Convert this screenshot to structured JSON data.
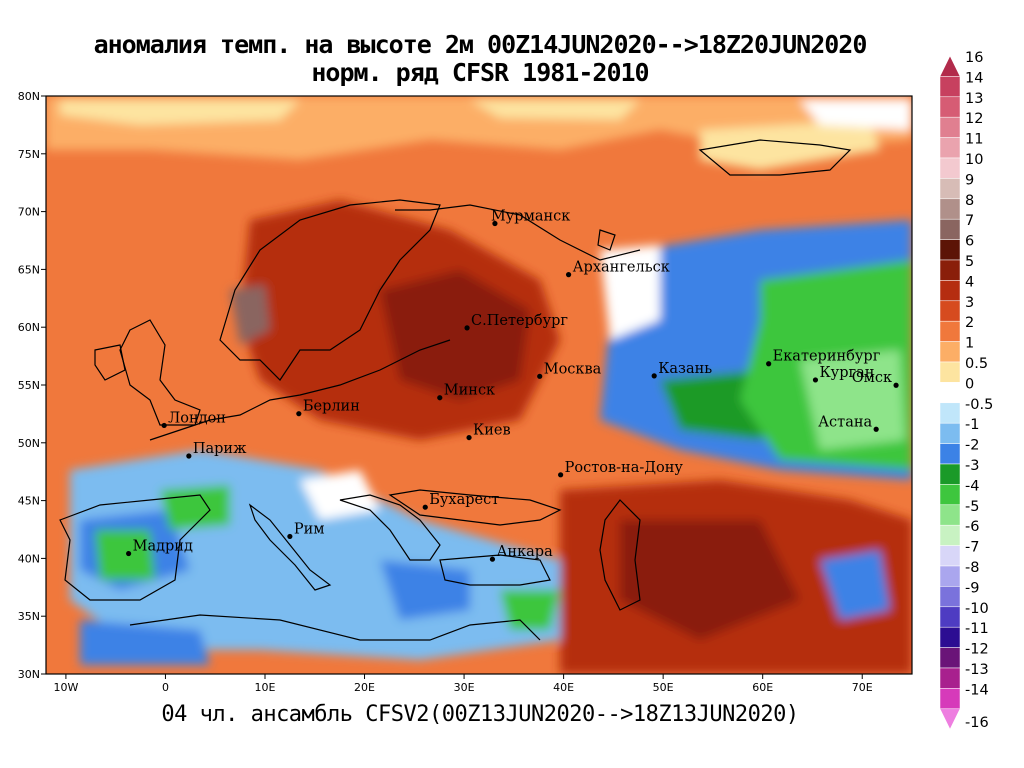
{
  "title_line1": "аномалия темп. на высоте 2м 00Z14JUN2020-->18Z20JUN2020",
  "title_line2": "норм. ряд CFSR 1981-2010",
  "footer": "04 чл. ансамбль CFSV2(00Z13JUN2020-->18Z13JUN2020)",
  "map": {
    "lon_range": [
      -12,
      75
    ],
    "lat_range": [
      30,
      80
    ],
    "lon_ticks": [
      {
        "v": -10,
        "label": "10W"
      },
      {
        "v": 0,
        "label": "0"
      },
      {
        "v": 10,
        "label": "10E"
      },
      {
        "v": 20,
        "label": "20E"
      },
      {
        "v": 30,
        "label": "30E"
      },
      {
        "v": 40,
        "label": "40E"
      },
      {
        "v": 50,
        "label": "50E"
      },
      {
        "v": 60,
        "label": "60E"
      },
      {
        "v": 70,
        "label": "70E"
      }
    ],
    "lat_ticks": [
      {
        "v": 30,
        "label": "30N"
      },
      {
        "v": 35,
        "label": "35N"
      },
      {
        "v": 40,
        "label": "40N"
      },
      {
        "v": 45,
        "label": "45N"
      },
      {
        "v": 50,
        "label": "50N"
      },
      {
        "v": 55,
        "label": "55N"
      },
      {
        "v": 60,
        "label": "60N"
      },
      {
        "v": 65,
        "label": "65N"
      },
      {
        "v": 70,
        "label": "70N"
      },
      {
        "v": 75,
        "label": "75N"
      },
      {
        "v": 80,
        "label": "80N"
      }
    ],
    "cities": [
      {
        "name": "Мурманск",
        "lon": 33.1,
        "lat": 68.97
      },
      {
        "name": "Архангельск",
        "lon": 40.5,
        "lat": 64.55
      },
      {
        "name": "С.Петербург",
        "lon": 30.3,
        "lat": 59.94
      },
      {
        "name": "Москва",
        "lon": 37.6,
        "lat": 55.75
      },
      {
        "name": "Казань",
        "lon": 49.1,
        "lat": 55.79
      },
      {
        "name": "Екатеринбург",
        "lon": 60.6,
        "lat": 56.84
      },
      {
        "name": "Курган",
        "lon": 65.3,
        "lat": 55.44
      },
      {
        "name": "Омск",
        "lon": 73.4,
        "lat": 54.98
      },
      {
        "name": "Астана",
        "lon": 71.4,
        "lat": 51.17
      },
      {
        "name": "Минск",
        "lon": 27.56,
        "lat": 53.9
      },
      {
        "name": "Киев",
        "lon": 30.5,
        "lat": 50.45
      },
      {
        "name": "Берлин",
        "lon": 13.4,
        "lat": 52.52
      },
      {
        "name": "Лондон",
        "lon": -0.13,
        "lat": 51.5
      },
      {
        "name": "Париж",
        "lon": 2.35,
        "lat": 48.86
      },
      {
        "name": "Ростов-на-Дону",
        "lon": 39.7,
        "lat": 47.23
      },
      {
        "name": "Бухарест",
        "lon": 26.1,
        "lat": 44.43
      },
      {
        "name": "Мадрид",
        "lon": -3.7,
        "lat": 40.42
      },
      {
        "name": "Рим",
        "lon": 12.5,
        "lat": 41.9
      },
      {
        "name": "Анкара",
        "lon": 32.85,
        "lat": 39.93
      }
    ]
  },
  "colorbar": {
    "levels": [
      {
        "label": "16",
        "color": "#b22b4b"
      },
      {
        "label": "14",
        "color": "#c7405f"
      },
      {
        "label": "13",
        "color": "#d65c74"
      },
      {
        "label": "12",
        "color": "#e07f90"
      },
      {
        "label": "11",
        "color": "#eaa3ae"
      },
      {
        "label": "10",
        "color": "#f3c9cf"
      },
      {
        "label": "9",
        "color": "#d7bcb6"
      },
      {
        "label": "8",
        "color": "#b0908a"
      },
      {
        "label": "7",
        "color": "#8a6560"
      },
      {
        "label": "6",
        "color": "#5c1406"
      },
      {
        "label": "5",
        "color": "#8a1e0a"
      },
      {
        "label": "4",
        "color": "#b52d10"
      },
      {
        "label": "3",
        "color": "#d64b1f"
      },
      {
        "label": "2",
        "color": "#f0783c"
      },
      {
        "label": "1",
        "color": "#fcae66"
      },
      {
        "label": "0.5",
        "color": "#fde4a0"
      },
      {
        "label": "0",
        "color": "#ffffff"
      },
      {
        "label": "-0.5",
        "color": "#c0e6fa"
      },
      {
        "label": "-1",
        "color": "#7cbcf0"
      },
      {
        "label": "-2",
        "color": "#3c82e6"
      },
      {
        "label": "-3",
        "color": "#1a9a28"
      },
      {
        "label": "-4",
        "color": "#3ec63e"
      },
      {
        "label": "-5",
        "color": "#8ee48a"
      },
      {
        "label": "-6",
        "color": "#c8f2c2"
      },
      {
        "label": "-7",
        "color": "#d8d6f8"
      },
      {
        "label": "-8",
        "color": "#aaa6ee"
      },
      {
        "label": "-9",
        "color": "#7a72dc"
      },
      {
        "label": "-10",
        "color": "#4e3cc2"
      },
      {
        "label": "-11",
        "color": "#2c0d92"
      },
      {
        "label": "-12",
        "color": "#6a1478"
      },
      {
        "label": "-13",
        "color": "#a8208e"
      },
      {
        "label": "-14",
        "color": "#d63aba"
      },
      {
        "label": "-16",
        "color": "#ee7ee0"
      }
    ]
  }
}
